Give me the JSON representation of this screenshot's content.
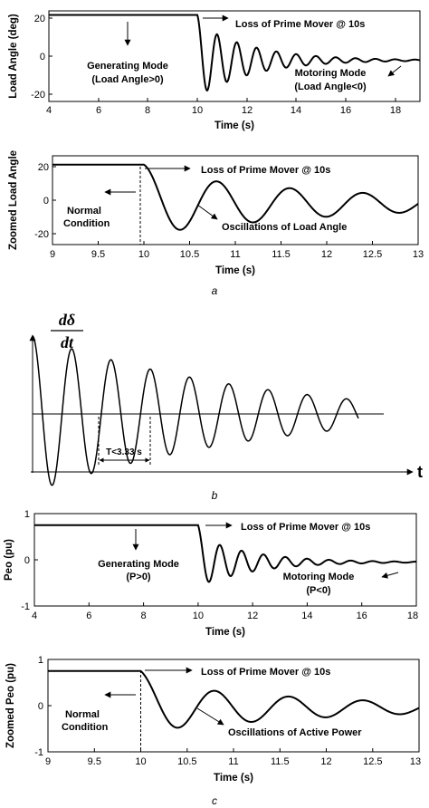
{
  "chart_data": [
    {
      "type": "line",
      "xlabel": "Time (s)",
      "ylabel": "Load Angle (deg)",
      "xlim": [
        4,
        19
      ],
      "ylim": [
        -22,
        22
      ],
      "x_ticks": [
        "4",
        "6",
        "8",
        "10",
        "12",
        "14",
        "16",
        "18"
      ],
      "y_ticks": [
        "20",
        "0",
        "-20"
      ],
      "signal": {
        "t_event": 10,
        "pre_value": 20,
        "final_value": -2,
        "amplitude": 18,
        "decay": 0.45,
        "period": 0.8
      },
      "annotations": [
        {
          "text": "Loss of Prime Mover @ 10s"
        },
        {
          "text": "Generating Mode"
        },
        {
          "text": "(Load Angle>0)"
        },
        {
          "text": "Motoring Mode"
        },
        {
          "text": "(Load Angle<0)"
        }
      ]
    },
    {
      "type": "line",
      "xlabel": "Time (s)",
      "ylabel": "Zoomed Load Angle",
      "xlim": [
        9,
        13
      ],
      "ylim": [
        -25,
        25
      ],
      "x_ticks": [
        "9",
        "9.5",
        "10",
        "10.5",
        "11",
        "11.5",
        "12",
        "12.5",
        "13"
      ],
      "y_ticks": [
        "20",
        "0",
        "-20"
      ],
      "signal": {
        "t_event": 10,
        "pre_value": 20,
        "final_value": -2,
        "amplitude": 18,
        "decay": 0.45,
        "period": 0.8
      },
      "annotations": [
        {
          "text": "Loss of Prime Mover @ 10s"
        },
        {
          "text": "Normal"
        },
        {
          "text": "Condition"
        },
        {
          "text": "Oscillations of Load Angle"
        }
      ]
    },
    {
      "type": "line",
      "xlabel": "t",
      "ylabel_num": "dδ",
      "ylabel_den": "dt",
      "signal": {
        "amplitude": 1.0,
        "decay": 0.2,
        "cycles": 8.3
      },
      "annotations": [
        {
          "text": "T<3.33 s"
        }
      ]
    },
    {
      "type": "line",
      "xlabel": "Time (s)",
      "ylabel": "Peo (pu)",
      "xlim": [
        4,
        18
      ],
      "ylim": [
        -1,
        1
      ],
      "x_ticks": [
        "4",
        "6",
        "8",
        "10",
        "12",
        "14",
        "16",
        "18"
      ],
      "y_ticks": [
        "1",
        "0",
        "-1"
      ],
      "signal": {
        "t_event": 10,
        "pre_value": 0.75,
        "final_value": -0.05,
        "amplitude": 0.55,
        "decay": 0.5,
        "period": 0.8
      },
      "annotations": [
        {
          "text": "Loss of Prime Mover @ 10s"
        },
        {
          "text": "Generating Mode"
        },
        {
          "text": "(P>0)"
        },
        {
          "text": "Motoring Mode"
        },
        {
          "text": "(P<0)"
        }
      ]
    },
    {
      "type": "line",
      "xlabel": "Time (s)",
      "ylabel": "Zoomed Peo (pu)",
      "xlim": [
        9,
        13
      ],
      "ylim": [
        -1,
        1
      ],
      "x_ticks": [
        "9",
        "9.5",
        "10",
        "10.5",
        "11",
        "11.5",
        "12",
        "12.5",
        "13"
      ],
      "y_ticks": [
        "1",
        "0",
        "-1"
      ],
      "signal": {
        "t_event": 10,
        "pre_value": 0.75,
        "final_value": -0.05,
        "amplitude": 0.55,
        "decay": 0.5,
        "period": 0.8
      },
      "annotations": [
        {
          "text": "Loss of Prime Mover @ 10s"
        },
        {
          "text": "Normal"
        },
        {
          "text": "Condition"
        },
        {
          "text": "Oscillations of Active Power"
        }
      ]
    }
  ],
  "captions": {
    "a": "a",
    "b": "b",
    "c": "c"
  }
}
